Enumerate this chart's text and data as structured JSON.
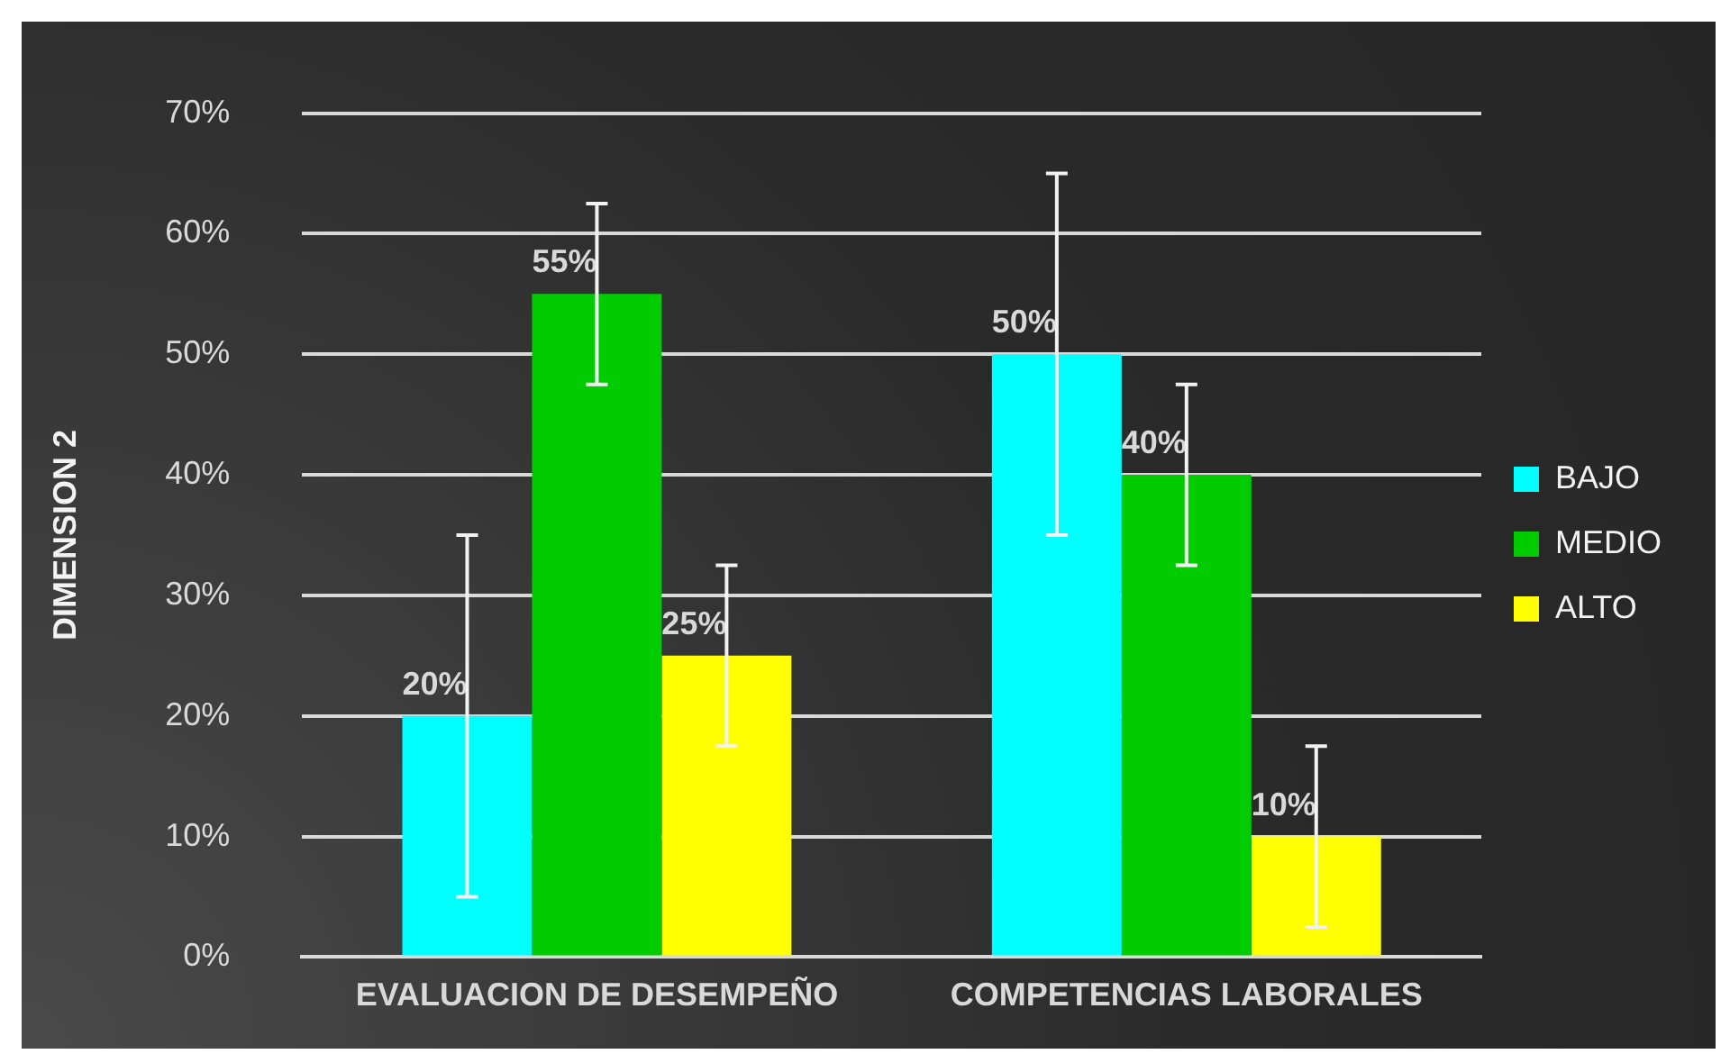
{
  "chart_data": {
    "type": "bar",
    "ylabel": "DIMENSION 2",
    "categories": [
      "EVALUACION DE DESEMPEÑO",
      "COMPETENCIAS LABORALES"
    ],
    "series": [
      {
        "name": "BAJO",
        "color": "#00ffff",
        "values": [
          20,
          50
        ],
        "errors": [
          15,
          15
        ],
        "value_labels": [
          "20%",
          "50%"
        ]
      },
      {
        "name": "MEDIO",
        "color": "#00cc00",
        "values": [
          55,
          40
        ],
        "errors": [
          7.5,
          7.5
        ],
        "value_labels": [
          "55%",
          "40%"
        ]
      },
      {
        "name": "ALTO",
        "color": "#ffff00",
        "values": [
          25,
          10
        ],
        "errors": [
          7.5,
          7.5
        ],
        "value_labels": [
          "25%",
          "10%"
        ]
      }
    ],
    "ylim": [
      0,
      70
    ],
    "yticks": [
      {
        "value": 0,
        "label": "0%"
      },
      {
        "value": 10,
        "label": "10%"
      },
      {
        "value": 20,
        "label": "20%"
      },
      {
        "value": 30,
        "label": "30%"
      },
      {
        "value": 40,
        "label": "40%"
      },
      {
        "value": 50,
        "label": "50%"
      },
      {
        "value": 60,
        "label": "60%"
      },
      {
        "value": 70,
        "label": "70%"
      }
    ],
    "grid": "y",
    "legend": "right"
  }
}
